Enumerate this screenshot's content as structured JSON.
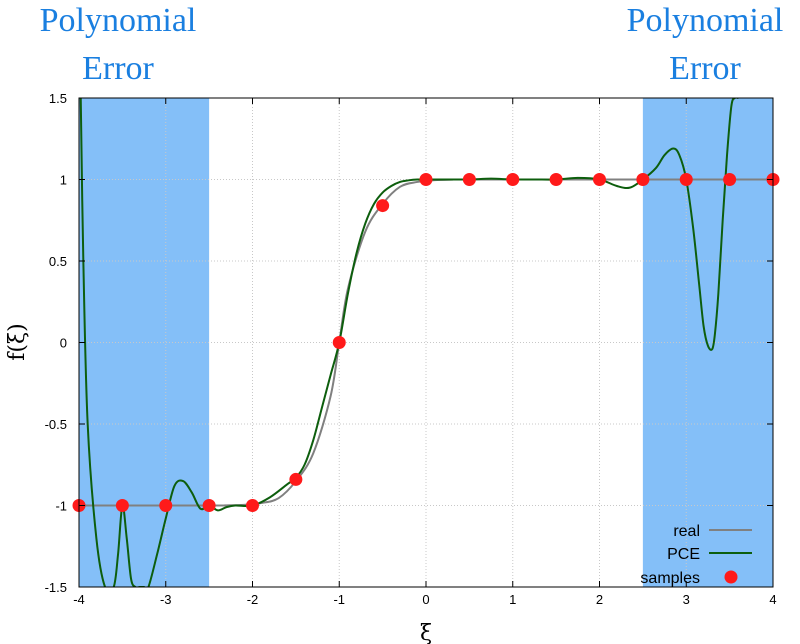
{
  "chart_data": {
    "type": "line",
    "xlabel": "ξ",
    "ylabel": "f(ξ)",
    "xlim": [
      -4,
      4
    ],
    "ylim": [
      -1.5,
      1.5
    ],
    "xticks": [
      "-4",
      "-3",
      "-2",
      "-1",
      "0",
      "1",
      "2",
      "3",
      "4"
    ],
    "yticks": [
      "1.5",
      "1",
      "0.5",
      "0",
      "-0.5",
      "-1",
      "-1.5"
    ],
    "grid": true,
    "legend_position": "bottom-right",
    "shaded_regions": [
      {
        "x_range": [
          -4,
          -2.5
        ],
        "color": "#84bff8"
      },
      {
        "x_range": [
          2.5,
          4
        ],
        "color": "#84bff8"
      }
    ],
    "annotations": [
      {
        "lines": [
          "Polynomial",
          "Error"
        ],
        "position": "top-left",
        "color": "#1a7fe0"
      },
      {
        "lines": [
          "Polynomial",
          "Error"
        ],
        "position": "top-right",
        "color": "#1a7fe0"
      }
    ],
    "series": [
      {
        "name": "real",
        "type": "line",
        "color": "#808080",
        "x": [
          -4,
          -2.5,
          -2.3,
          -2.1,
          -1.9,
          -1.7,
          -1.5,
          -1.3,
          -1.1,
          -1.0,
          -0.9,
          -0.7,
          -0.5,
          -0.3,
          -0.1,
          0.1,
          0.3,
          0.5,
          4
        ],
        "y": [
          -1,
          -1,
          -0.999,
          -0.996,
          -0.985,
          -0.955,
          -0.85,
          -0.68,
          -0.33,
          0,
          0.33,
          0.68,
          0.85,
          0.955,
          0.985,
          0.996,
          0.999,
          1,
          1
        ]
      },
      {
        "name": "PCE",
        "type": "line",
        "color": "#0d5e0d",
        "x": [
          -3.98,
          -3.95,
          -3.9,
          -3.8,
          -3.7,
          -3.6,
          -3.55,
          -3.5,
          -3.45,
          -3.4,
          -3.35,
          -3.3,
          -3.25,
          -3.2,
          -3.1,
          -3.0,
          -2.9,
          -2.8,
          -2.7,
          -2.6,
          -2.5,
          -2.4,
          -2.3,
          -2.2,
          -2.0,
          -1.8,
          -1.6,
          -1.5,
          -1.4,
          -1.3,
          -1.2,
          -1.1,
          -1.0,
          -0.9,
          -0.8,
          -0.7,
          -0.6,
          -0.5,
          -0.4,
          -0.3,
          -0.2,
          -0.1,
          0,
          0.25,
          0.5,
          0.75,
          1.0,
          1.25,
          1.5,
          1.75,
          2.0,
          2.2,
          2.35,
          2.5,
          2.65,
          2.75,
          2.85,
          2.92,
          3.0,
          3.08,
          3.15,
          3.2,
          3.25,
          3.3,
          3.33,
          3.37,
          3.42,
          3.47,
          3.52,
          3.56,
          3.6
        ],
        "y": [
          1.5,
          0.5,
          -0.5,
          -1.2,
          -1.5,
          -1.5,
          -1.3,
          -1.0,
          -1.2,
          -1.45,
          -1.5,
          -1.5,
          -1.5,
          -1.5,
          -1.3,
          -1.08,
          -0.88,
          -0.85,
          -0.92,
          -1.02,
          -1.0,
          -1.03,
          -1.01,
          -1.0,
          -1.0,
          -0.95,
          -0.87,
          -0.83,
          -0.75,
          -0.6,
          -0.4,
          -0.2,
          0.0,
          0.3,
          0.55,
          0.73,
          0.85,
          0.92,
          0.96,
          0.985,
          0.995,
          1.0,
          1.0,
          1.0,
          1.0,
          1.005,
          1.0,
          1.0,
          1.0,
          1.01,
          1.0,
          0.96,
          0.95,
          1.0,
          1.07,
          1.15,
          1.19,
          1.15,
          1.0,
          0.7,
          0.35,
          0.1,
          -0.02,
          -0.04,
          0.05,
          0.3,
          0.75,
          1.15,
          1.45,
          1.5,
          1.5
        ]
      },
      {
        "name": "samples",
        "type": "scatter",
        "color": "#ff1a1a",
        "x": [
          -4,
          -3.5,
          -3,
          -2.5,
          -2,
          -1.5,
          -1,
          -0.5,
          0,
          0.5,
          1,
          1.5,
          2,
          2.5,
          3,
          3.5,
          4
        ],
        "y": [
          -1,
          -1,
          -1,
          -1,
          -1,
          -0.84,
          0,
          0.84,
          1,
          1,
          1,
          1,
          1,
          1,
          1,
          1,
          1
        ]
      }
    ]
  }
}
